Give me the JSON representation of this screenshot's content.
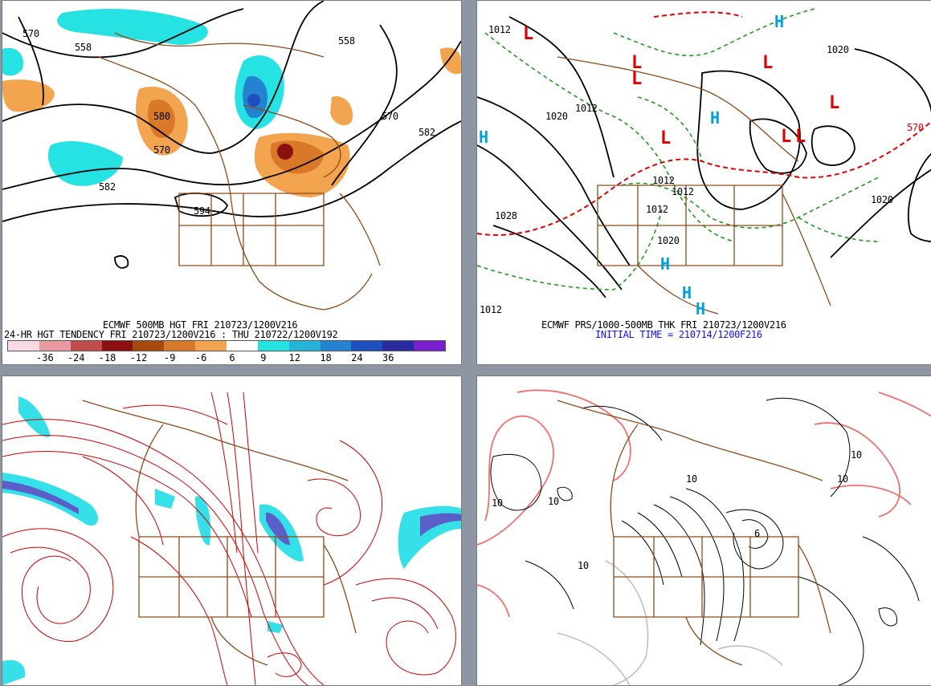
{
  "panels": {
    "top_left": {
      "caption_line1": "ECMWF 500MB HGT FRI 210723/1200V216",
      "caption_line2": "24-HR HGT TENDENCY FRI 210723/1200V216 : THU 210722/1200V192",
      "contour_labels": [
        "570",
        "558",
        "558",
        "570",
        "582",
        "580",
        "570",
        "582",
        "594"
      ],
      "legend_ticks": [
        "-36",
        "-24",
        "-18",
        "-12",
        "-9",
        "-6",
        "6",
        "9",
        "12",
        "18",
        "24",
        "36"
      ],
      "legend_colors": [
        "#f9d9e4",
        "#e89aa0",
        "#c24b4b",
        "#8b1010",
        "#a84a10",
        "#d8792a",
        "#f2a44e",
        "#ffffff",
        "#27e2e2",
        "#25b4d8",
        "#2383d0",
        "#1f4fbe",
        "#2b2ba0",
        "#7a1fd0"
      ]
    },
    "top_right": {
      "caption_line1": "ECMWF PRS/1000-500MB THK FRI 210723/1200V216",
      "caption_line2": "INITIAL TIME = 210714/1200F216",
      "contour_labels": [
        "1012",
        "1020",
        "1012",
        "1020",
        "1020",
        "1028",
        "1012",
        "1012",
        "1012",
        "1012",
        "1020",
        "570"
      ],
      "high_marks": [
        "H",
        "H",
        "H",
        "H",
        "H",
        "H"
      ],
      "low_marks": [
        "L",
        "L",
        "L",
        "L",
        "L",
        "L",
        "L",
        "L"
      ]
    },
    "bottom_right": {
      "contour_labels": [
        "10",
        "10",
        "10",
        "10",
        "10",
        "10",
        "6"
      ]
    }
  },
  "colors": {
    "page_bg": "#8f96a3",
    "geography": "#8b4a1c",
    "height_contour": "#000000",
    "pressure_high": "#00a0e0",
    "pressure_low": "#e00000",
    "thickness_line": "#e00000",
    "dashed_green": "#1f9a1f",
    "streamline": "#cc0000",
    "jet_cyan": "#35e0e8",
    "salmon_contour": "#f07070"
  }
}
